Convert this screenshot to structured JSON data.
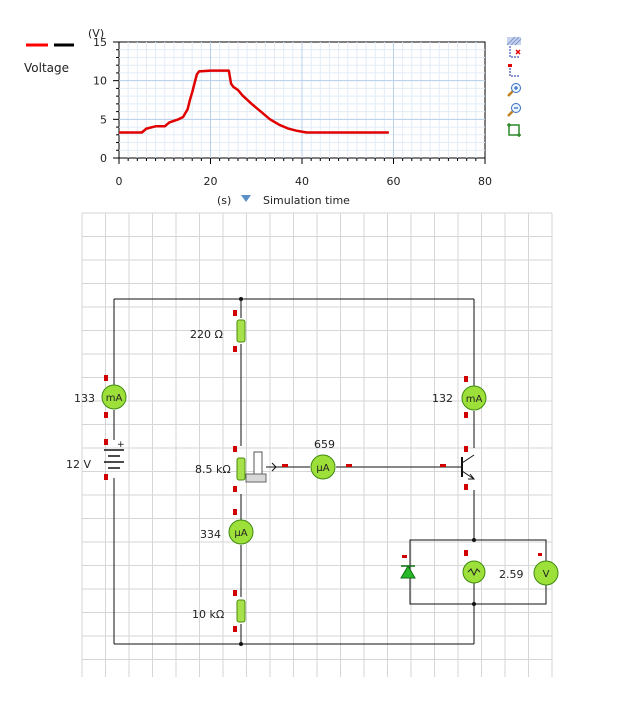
{
  "legend": {
    "label": "Voltage",
    "colors": [
      "#ff0000",
      "#000000"
    ]
  },
  "chart_data": {
    "type": "line",
    "ylabel": "(V)",
    "xlabel": "(s)",
    "x_selector": "Simulation time",
    "xlim": [
      0,
      80
    ],
    "ylim": [
      0,
      15
    ],
    "xticks": [
      "0",
      "20",
      "40",
      "60",
      "80"
    ],
    "yticks": [
      "0",
      "5",
      "10",
      "15"
    ],
    "grid": true,
    "series": [
      {
        "color": "#e00000",
        "x": [
          0,
          5,
          6,
          8,
          10,
          11,
          13,
          14,
          15,
          15.5,
          16,
          17,
          17.5,
          20,
          24,
          24.5,
          25,
          26,
          27,
          29,
          31,
          33,
          35,
          37,
          39,
          41,
          45,
          50,
          55,
          59
        ],
        "y": [
          3.3,
          3.3,
          3.8,
          4.1,
          4.1,
          4.6,
          5.0,
          5.3,
          6.3,
          7.5,
          8.5,
          10.8,
          11.2,
          11.3,
          11.3,
          9.6,
          9.2,
          8.8,
          8.1,
          7.0,
          6.0,
          5.0,
          4.3,
          3.8,
          3.5,
          3.3,
          3.3,
          3.3,
          3.3,
          3.3
        ]
      }
    ]
  },
  "toolbar": {
    "icons": [
      "hatch-icon",
      "axis-select-icon",
      "axis-reset-icon",
      "zoom-in-icon",
      "zoom-out-icon",
      "fit-view-icon"
    ]
  },
  "circuit": {
    "r_top": "220 Ω",
    "r_mid": "8.5 kΩ",
    "r_bot": "10 kΩ",
    "battery": "12 V",
    "ammeter_left": {
      "value": "133",
      "unit": "mA"
    },
    "ammeter_right": {
      "value": "132",
      "unit": "mA"
    },
    "ammeter_center": {
      "value": "659",
      "unit": "µA"
    },
    "ammeter_lower": {
      "value": "334",
      "unit": "µA"
    },
    "voltmeter": {
      "value": "2.59",
      "unit": "V"
    }
  }
}
